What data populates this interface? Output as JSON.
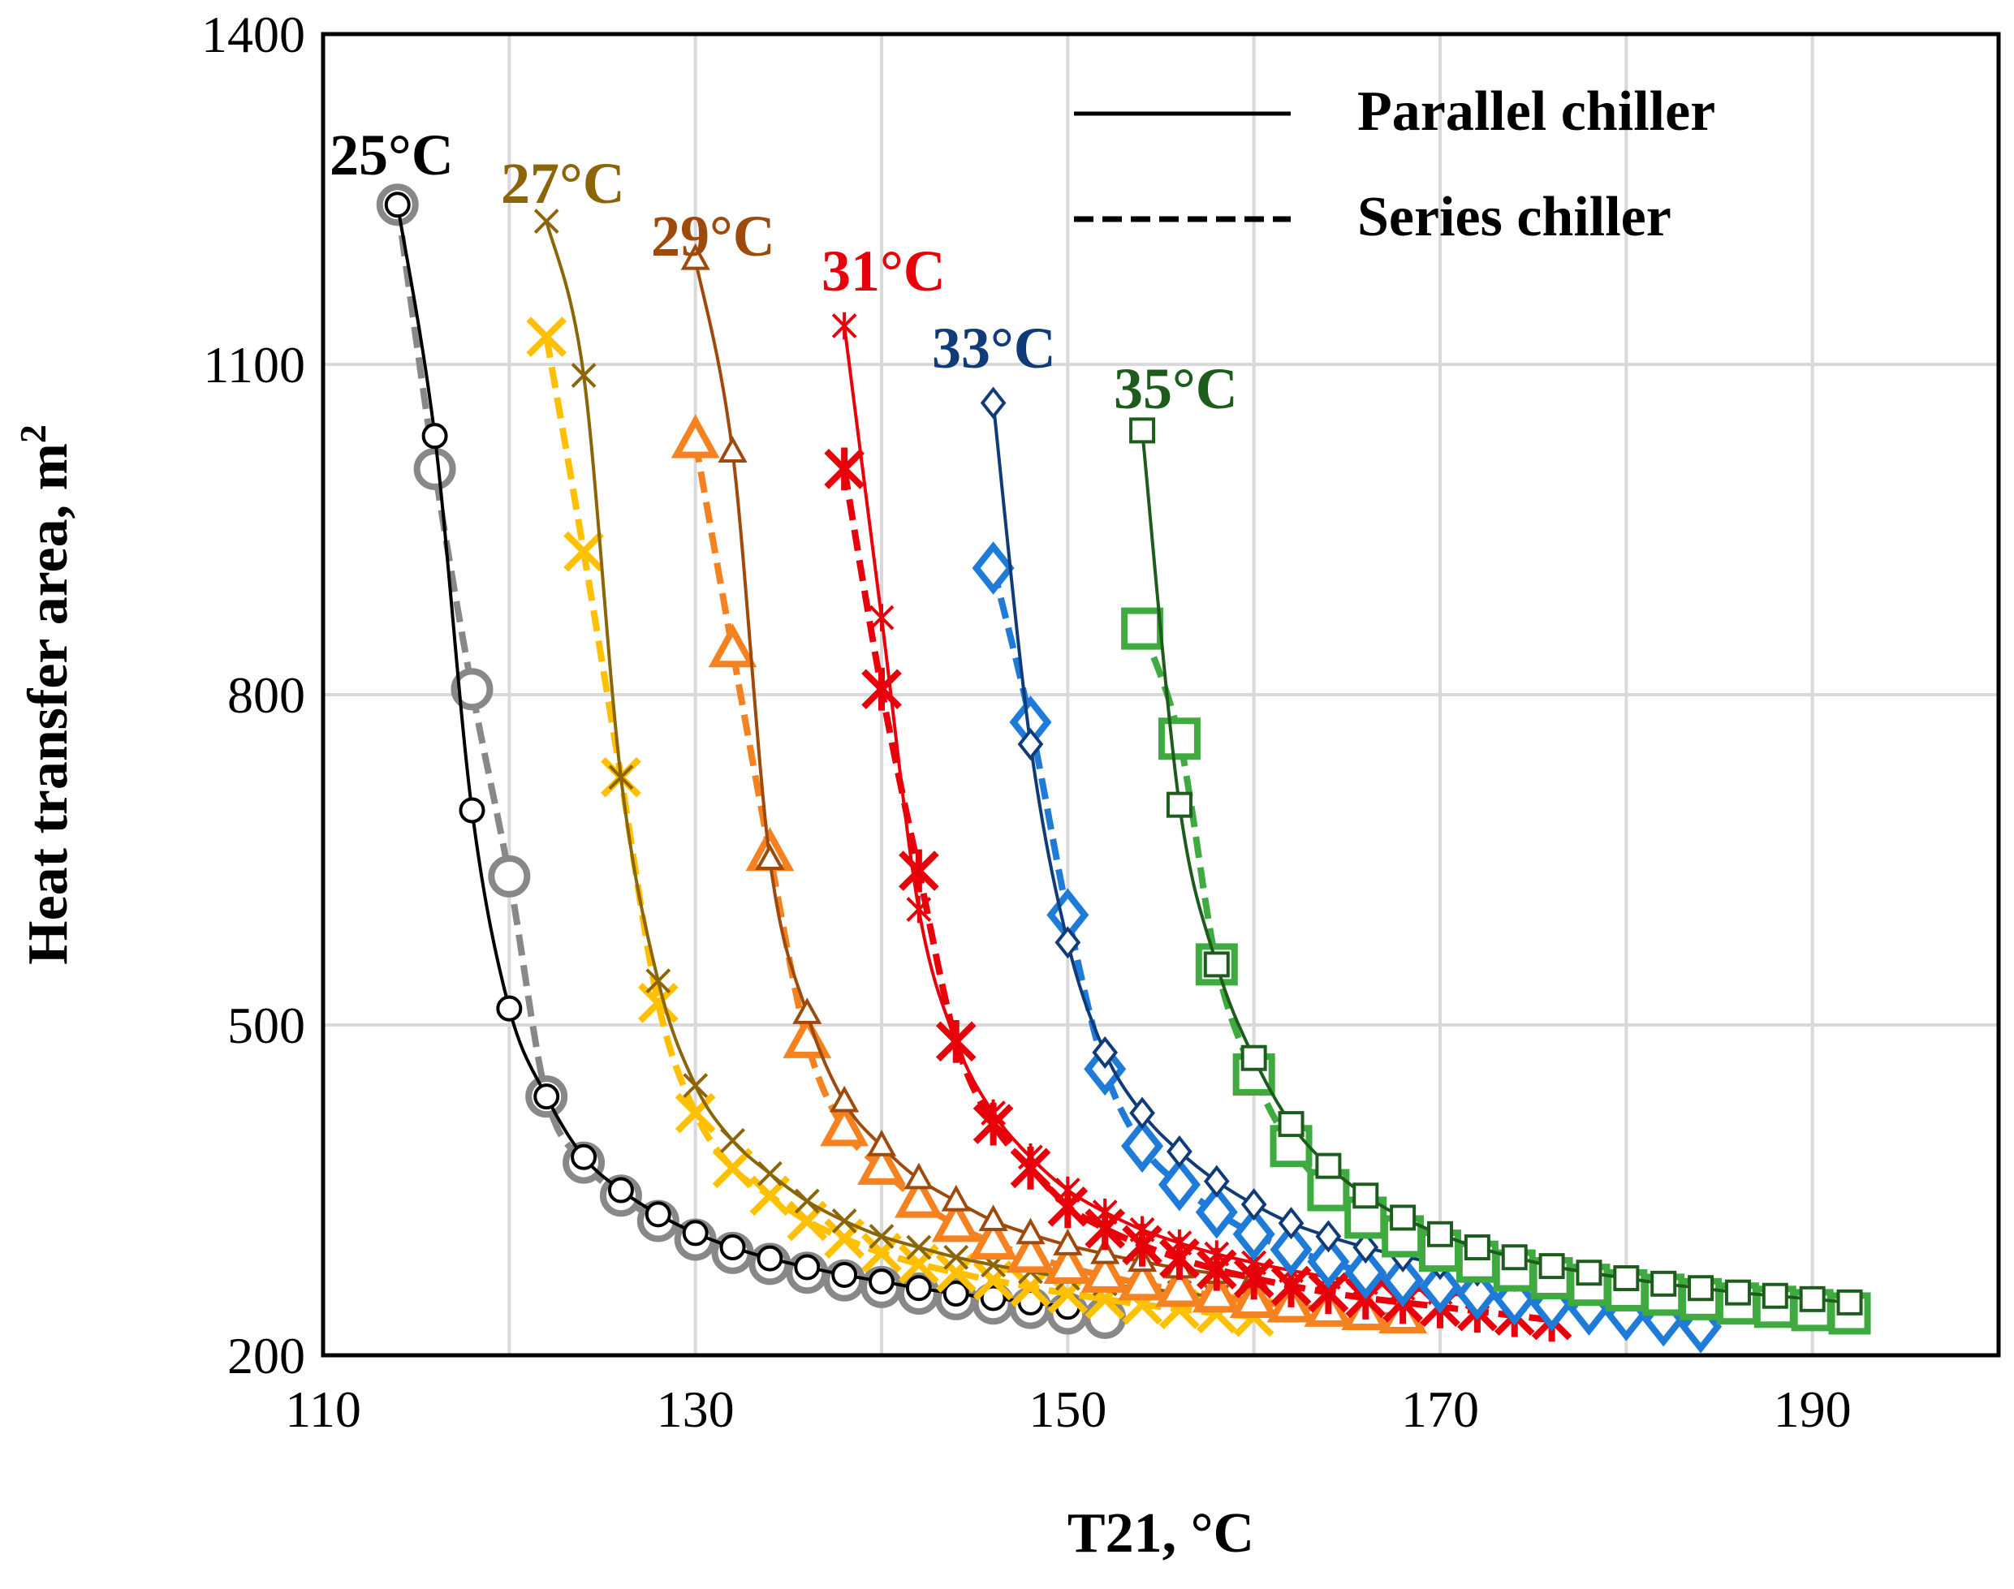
{
  "chart_data": {
    "type": "line",
    "title": "",
    "xlabel": "T21, °C",
    "ylabel": "Heat transfer area, m",
    "ylabel_superscript": "2",
    "xlim": [
      110,
      200
    ],
    "ylim": [
      200,
      1400
    ],
    "xticks": [
      110,
      130,
      150,
      170,
      190
    ],
    "yticks": [
      200,
      500,
      800,
      1100,
      1400
    ],
    "grid": true,
    "legend": {
      "position": "top-right",
      "entries": [
        {
          "label": "Parallel chiller",
          "style": "solid"
        },
        {
          "label": "Series chiller",
          "style": "dashed"
        }
      ]
    },
    "series": [
      {
        "name": "25°C",
        "label": "25°C",
        "label_color": "#000000",
        "marker": "circle",
        "parallel": {
          "color": "#000000",
          "x": [
            114,
            116,
            118,
            120,
            122,
            124,
            126,
            128,
            130,
            132,
            134,
            136,
            138,
            140,
            142,
            144,
            146,
            148,
            150
          ],
          "y": [
            1245,
            1035,
            695,
            515,
            435,
            380,
            350,
            328,
            311,
            298,
            288,
            280,
            273,
            267,
            261,
            256,
            252,
            248,
            244
          ]
        },
        "series_chiller": {
          "color": "#888888",
          "x": [
            114,
            116,
            118,
            120,
            122,
            124,
            126,
            128,
            130,
            132,
            134,
            136,
            138,
            140,
            142,
            144,
            146,
            148,
            150,
            152
          ],
          "y": [
            1245,
            1005,
            805,
            635,
            435,
            375,
            345,
            322,
            305,
            293,
            283,
            275,
            268,
            262,
            256,
            251,
            247,
            243,
            238,
            234
          ]
        }
      },
      {
        "name": "27°C",
        "label": "27°C",
        "label_color": "#8B6508",
        "marker": "x",
        "parallel": {
          "color": "#8B6508",
          "x": [
            122,
            124,
            126,
            128,
            130,
            132,
            134,
            136,
            138,
            140,
            142,
            144,
            146,
            148,
            150,
            152,
            154,
            156,
            158,
            160
          ],
          "y": [
            1230,
            1090,
            725,
            540,
            445,
            395,
            365,
            340,
            322,
            308,
            298,
            289,
            282,
            276,
            270,
            265,
            261,
            257,
            253,
            250
          ]
        },
        "series_chiller": {
          "color": "#FFC000",
          "x": [
            122,
            124,
            126,
            128,
            130,
            132,
            134,
            136,
            138,
            140,
            142,
            144,
            146,
            148,
            150,
            152,
            154,
            156,
            158,
            160
          ],
          "y": [
            1125,
            930,
            725,
            520,
            420,
            370,
            345,
            322,
            306,
            293,
            283,
            275,
            268,
            262,
            256,
            251,
            246,
            242,
            238,
            235
          ]
        }
      },
      {
        "name": "29°C",
        "label": "29°C",
        "label_color": "#9E4A0C",
        "marker": "triangle",
        "parallel": {
          "color": "#9E4A0C",
          "x": [
            130,
            132,
            134,
            136,
            138,
            140,
            142,
            144,
            146,
            148,
            150,
            152,
            154,
            156,
            158,
            160
          ],
          "y": [
            1195,
            1020,
            650,
            510,
            430,
            390,
            360,
            340,
            322,
            310,
            300,
            292,
            285,
            279,
            274,
            270
          ]
        },
        "series_chiller": {
          "color": "#F58220",
          "x": [
            130,
            132,
            134,
            136,
            138,
            140,
            142,
            144,
            146,
            148,
            150,
            152,
            154,
            156,
            158,
            160,
            162,
            164,
            166,
            168
          ],
          "y": [
            1030,
            840,
            655,
            485,
            405,
            370,
            340,
            318,
            302,
            290,
            280,
            272,
            265,
            259,
            254,
            249,
            245,
            241,
            238,
            235
          ]
        }
      },
      {
        "name": "31°C",
        "label": "31°C",
        "label_color": "#E8000B",
        "marker": "asterisk",
        "parallel": {
          "color": "#E8000B",
          "x": [
            138,
            140,
            142,
            144,
            146,
            148,
            150,
            152,
            154,
            156,
            158,
            160,
            162,
            164,
            166,
            168,
            170,
            172,
            174,
            176
          ],
          "y": [
            1135,
            870,
            605,
            485,
            420,
            380,
            350,
            330,
            314,
            302,
            292,
            284,
            277,
            271,
            266,
            261,
            257,
            253,
            250,
            247
          ]
        },
        "series_chiller": {
          "color": "#E8000B",
          "x": [
            138,
            140,
            142,
            144,
            146,
            148,
            150,
            152,
            154,
            156,
            158,
            160,
            162,
            164,
            166,
            168,
            170,
            172,
            174,
            176
          ],
          "y": [
            1005,
            805,
            640,
            485,
            410,
            370,
            335,
            315,
            300,
            288,
            278,
            270,
            263,
            257,
            252,
            248,
            244,
            240,
            236,
            232
          ]
        }
      },
      {
        "name": "33°C",
        "label": "33°C",
        "label_color": "#0F3C78",
        "marker": "diamond",
        "parallel": {
          "color": "#0F3C78",
          "x": [
            146,
            148,
            150,
            152,
            154,
            156,
            158,
            160,
            162,
            164,
            166,
            168,
            170,
            172,
            174,
            176,
            178,
            180,
            182,
            184
          ],
          "y": [
            1065,
            755,
            575,
            475,
            420,
            385,
            358,
            337,
            320,
            308,
            298,
            290,
            283,
            277,
            272,
            268,
            264,
            260,
            257,
            254
          ]
        },
        "series_chiller": {
          "color": "#1F7BD8",
          "x": [
            146,
            148,
            150,
            152,
            154,
            156,
            158,
            160,
            162,
            164,
            166,
            168,
            170,
            172,
            174,
            176,
            178,
            180,
            182,
            184
          ],
          "y": [
            915,
            775,
            600,
            460,
            390,
            355,
            330,
            310,
            296,
            285,
            275,
            268,
            262,
            256,
            251,
            246,
            242,
            237,
            232,
            226
          ]
        }
      },
      {
        "name": "35°C",
        "label": "35°C",
        "label_color": "#1E5C1E",
        "marker": "square",
        "parallel": {
          "color": "#1E5C1E",
          "x": [
            154,
            156,
            158,
            160,
            162,
            164,
            166,
            168,
            170,
            172,
            174,
            176,
            178,
            180,
            182,
            184,
            186,
            188,
            190,
            192
          ],
          "y": [
            1040,
            700,
            555,
            470,
            410,
            372,
            345,
            325,
            310,
            298,
            289,
            281,
            275,
            270,
            265,
            261,
            257,
            254,
            251,
            248
          ]
        },
        "series_chiller": {
          "color": "#3FAA3F",
          "x": [
            154,
            156,
            158,
            160,
            162,
            164,
            166,
            168,
            170,
            172,
            174,
            176,
            178,
            180,
            182,
            184,
            186,
            188,
            190,
            192
          ],
          "y": [
            860,
            760,
            555,
            455,
            390,
            350,
            325,
            308,
            295,
            285,
            277,
            270,
            264,
            259,
            255,
            251,
            247,
            244,
            241,
            238
          ]
        }
      }
    ]
  }
}
